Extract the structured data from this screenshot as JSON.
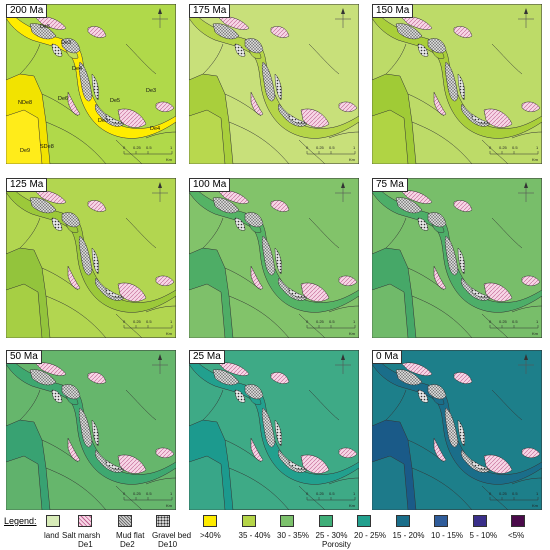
{
  "panels": [
    {
      "age": "200 Ma",
      "colors": {
        "floodplain": "#b0d94a",
        "channel": "#ffec00",
        "bar": "#f2e300",
        "south": "#ffec1a",
        "tidal": "#c4dd5a"
      },
      "show_units": true,
      "show_scale": true
    },
    {
      "age": "175 Ma",
      "colors": {
        "floodplain": "#c8e07a",
        "channel": "#b5d548",
        "bar": "#a9cf3c",
        "south": "#b8d84e",
        "tidal": "#b5d548"
      },
      "show_units": false,
      "show_scale": true
    },
    {
      "age": "150 Ma",
      "colors": {
        "floodplain": "#bddb68",
        "channel": "#a9cf3a",
        "bar": "#a0cb36",
        "south": "#b0d444",
        "tidal": "#a9cf3a"
      },
      "show_units": false,
      "show_scale": true
    },
    {
      "age": "125 Ma",
      "colors": {
        "floodplain": "#b2d650",
        "channel": "#9cc93a",
        "bar": "#93c43c",
        "south": "#a6cf44",
        "tidal": "#9cc93a"
      },
      "show_units": false,
      "show_scale": true
    },
    {
      "age": "100 Ma",
      "colors": {
        "floodplain": "#82c36a",
        "channel": "#55b365",
        "bar": "#4ead66",
        "south": "#7ec06a",
        "tidal": "#55b365"
      },
      "show_units": false,
      "show_scale": true
    },
    {
      "age": "75 Ma",
      "colors": {
        "floodplain": "#78be6a",
        "channel": "#4dae68",
        "bar": "#46a868",
        "south": "#70ba6a",
        "tidal": "#4dae68"
      },
      "show_units": false,
      "show_scale": true
    },
    {
      "age": "50 Ma",
      "colors": {
        "floodplain": "#66b66c",
        "channel": "#3ea870",
        "bar": "#38a272",
        "south": "#60b26c",
        "tidal": "#3ea870"
      },
      "show_units": false,
      "show_scale": true
    },
    {
      "age": "25 Ma",
      "colors": {
        "floodplain": "#3eaa86",
        "channel": "#22a08e",
        "bar": "#1c9a8e",
        "south": "#38a688",
        "tidal": "#22a08e"
      },
      "show_units": false,
      "show_scale": true
    },
    {
      "age": "0 Ma",
      "colors": {
        "floodplain": "#1d7f8a",
        "channel": "#1a6e8a",
        "bar": "#1a5a88",
        "south": "#1d7a8a",
        "tidal": "#1a6e8a"
      },
      "show_units": false,
      "show_scale": true
    }
  ],
  "units": {
    "de5": "De5",
    "de3_a": "De3",
    "de4_a": "De4",
    "de6": "De6",
    "nde8": "NDe8",
    "de9": "De9",
    "sde8": "SDe8",
    "de5_b": "De5",
    "de3_b": "De3",
    "de3_c": "De3",
    "de4_b": "De4"
  },
  "scale": {
    "t0": "0",
    "t1": "0.25",
    "t2": "0.5",
    "t3": "1",
    "unit": "Km"
  },
  "legend": {
    "title": "Legend:",
    "land": "land",
    "salt_marsh_l1": "Salt marsh",
    "salt_marsh_l2": "De1",
    "mud_flat_l1": "Mud flat",
    "mud_flat_l2": "De2",
    "gravel_l1": "Gravel bed",
    "gravel_l2": "De10",
    "porosity_title": "Porosity",
    "classes": [
      {
        "label": ">40%",
        "color": "#ffec00"
      },
      {
        "label": "35 - 40%",
        "color": "#b5d548"
      },
      {
        "label": "30 - 35%",
        "color": "#7cc16c"
      },
      {
        "label": "25 - 30%",
        "color": "#3fae78"
      },
      {
        "label": "20 - 25%",
        "color": "#22a08e"
      },
      {
        "label": "15 - 20%",
        "color": "#1a6e8a"
      },
      {
        "label": "10 - 15%",
        "color": "#2f5c9a"
      },
      {
        "label": "5 - 10%",
        "color": "#3a2f8a"
      },
      {
        "label": "<5%",
        "color": "#4a0a4a"
      }
    ],
    "colors": {
      "land": "#d8ecb8",
      "salt_marsh": "#f7d6e6",
      "mud_flat": "#cccccc",
      "gravel": "#d0d0d0"
    }
  }
}
